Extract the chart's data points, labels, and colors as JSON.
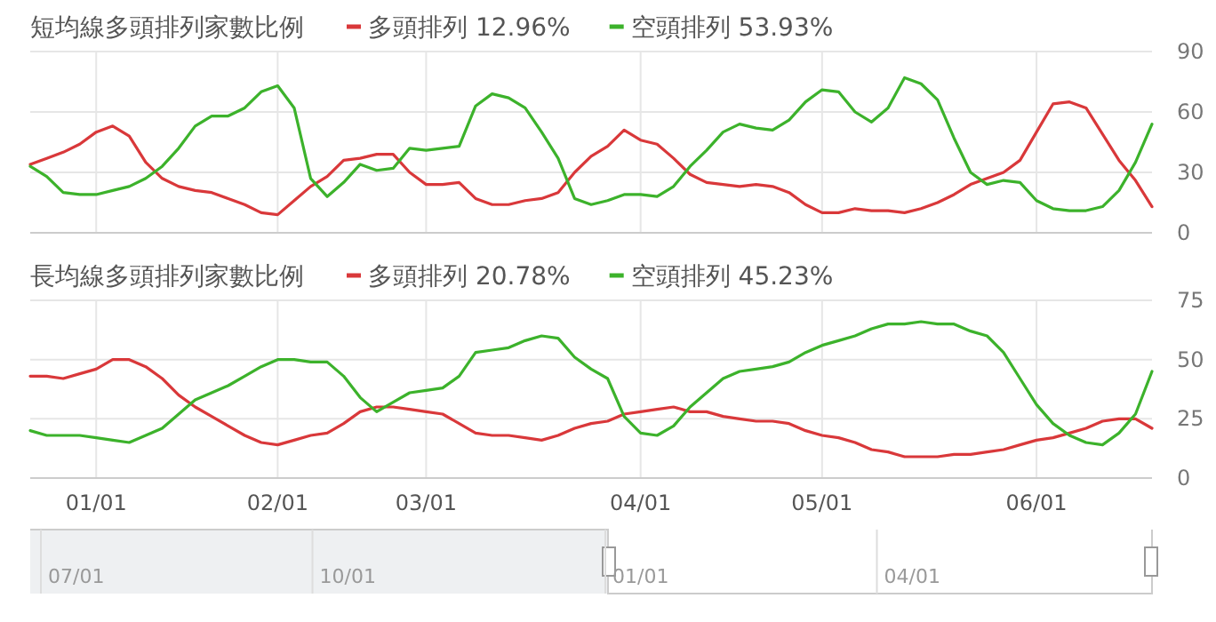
{
  "chart_data": [
    {
      "type": "line",
      "title": "短均線多頭排列家數比例",
      "legend": "top",
      "grid": true,
      "tick_labels": "y",
      "ylim": [
        0,
        90
      ],
      "yticks": [
        0,
        30,
        60,
        90
      ],
      "categories": [
        null,
        null,
        null,
        null,
        null,
        null,
        null,
        null,
        null,
        null,
        null,
        null,
        null,
        null,
        null,
        null,
        null,
        null,
        null,
        null,
        null,
        null,
        null,
        null,
        null,
        null,
        null,
        null,
        null,
        null,
        null,
        null,
        null,
        null,
        null,
        null,
        null,
        null,
        null,
        null,
        null,
        null,
        null,
        null,
        null,
        null,
        null,
        null,
        null,
        null,
        null,
        null,
        null,
        null,
        null,
        null,
        null,
        null,
        null,
        null,
        null,
        null,
        null,
        null,
        null,
        null,
        null,
        null,
        null
      ],
      "series": [
        {
          "name": "多頭排列 12.96%",
          "color": "#d9383a",
          "values": [
            34,
            37,
            40,
            44,
            50,
            53,
            48,
            35,
            27,
            23,
            21,
            20,
            17,
            14,
            10,
            9,
            16,
            23,
            28,
            36,
            37,
            39,
            39,
            30,
            24,
            24,
            25,
            17,
            14,
            14,
            16,
            17,
            20,
            30,
            38,
            43,
            51,
            46,
            44,
            37,
            29,
            25,
            24,
            23,
            24,
            23,
            20,
            14,
            10,
            10,
            12,
            11,
            11,
            10,
            12,
            15,
            19,
            24,
            27,
            30,
            36,
            50,
            64,
            65,
            62,
            49,
            36,
            26,
            13
          ]
        },
        {
          "name": "空頭排列 53.93%",
          "color": "#3cb22b",
          "values": [
            33,
            28,
            20,
            19,
            19,
            21,
            23,
            27,
            33,
            42,
            53,
            58,
            58,
            62,
            70,
            73,
            62,
            27,
            18,
            25,
            34,
            31,
            32,
            42,
            41,
            42,
            43,
            63,
            69,
            67,
            62,
            50,
            37,
            17,
            14,
            16,
            19,
            19,
            18,
            23,
            33,
            41,
            50,
            54,
            52,
            51,
            56,
            65,
            71,
            70,
            60,
            55,
            62,
            77,
            74,
            66,
            47,
            30,
            24,
            26,
            25,
            16,
            12,
            11,
            11,
            13,
            21,
            35,
            54
          ]
        }
      ]
    },
    {
      "type": "line",
      "title": "長均線多頭排列家數比例",
      "legend": "top",
      "grid": true,
      "ylim": [
        0,
        75
      ],
      "yticks": [
        0,
        25,
        50,
        75
      ],
      "categories": [
        null,
        null,
        null,
        null,
        "01/01",
        null,
        null,
        null,
        null,
        null,
        null,
        null,
        null,
        null,
        null,
        "02/01",
        null,
        null,
        null,
        null,
        null,
        null,
        null,
        null,
        "03/01",
        null,
        null,
        null,
        null,
        null,
        null,
        null,
        null,
        null,
        null,
        null,
        null,
        "04/01",
        null,
        null,
        null,
        null,
        null,
        null,
        null,
        null,
        null,
        null,
        "05/01",
        null,
        null,
        null,
        null,
        null,
        null,
        null,
        null,
        null,
        null,
        null,
        null,
        "06/01",
        null,
        null,
        null,
        null,
        null,
        null,
        null
      ],
      "annotations": [
        "07/01",
        "10/01",
        "01/01",
        "04/01"
      ],
      "series": [
        {
          "name": "多頭排列 20.78%",
          "color": "#d9383a",
          "values": [
            43,
            43,
            42,
            44,
            46,
            50,
            50,
            47,
            42,
            35,
            30,
            26,
            22,
            18,
            15,
            14,
            16,
            18,
            19,
            23,
            28,
            30,
            30,
            29,
            28,
            27,
            23,
            19,
            18,
            18,
            17,
            16,
            18,
            21,
            23,
            24,
            27,
            28,
            29,
            30,
            28,
            28,
            26,
            25,
            24,
            24,
            23,
            20,
            18,
            17,
            15,
            12,
            11,
            9,
            9,
            9,
            10,
            10,
            11,
            12,
            14,
            16,
            17,
            19,
            21,
            24,
            25,
            25,
            21
          ]
        },
        {
          "name": "空頭排列 45.23%",
          "color": "#3cb22b",
          "values": [
            20,
            18,
            18,
            18,
            17,
            16,
            15,
            18,
            21,
            27,
            33,
            36,
            39,
            43,
            47,
            50,
            50,
            49,
            49,
            43,
            34,
            28,
            32,
            36,
            37,
            38,
            43,
            53,
            54,
            55,
            58,
            60,
            59,
            51,
            46,
            42,
            26,
            19,
            18,
            22,
            30,
            36,
            42,
            45,
            46,
            47,
            49,
            53,
            56,
            58,
            60,
            63,
            65,
            65,
            66,
            65,
            65,
            62,
            60,
            53,
            42,
            31,
            23,
            18,
            15,
            14,
            19,
            27,
            45
          ]
        }
      ]
    }
  ]
}
